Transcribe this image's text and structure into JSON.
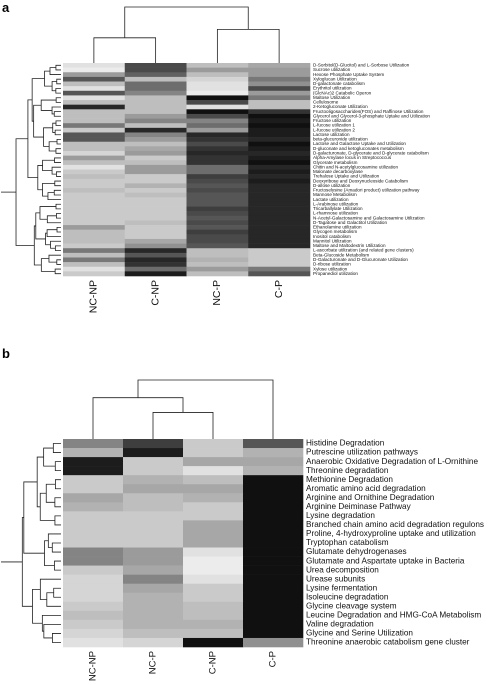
{
  "chart_data": [
    {
      "type": "heatmap",
      "panel_label": "a",
      "columns": [
        "NC-NP",
        "C-NP",
        "NC-P",
        "C-P"
      ],
      "rows": [
        "D-Sorbitol(D-Glucitol) and L-Sorbose Utilization",
        "Sucrose utilization",
        "Hexose Phosphate Uptake System",
        "Xyloglucan Utilization",
        "D-galactonate catabolism",
        "Erythritol utilization",
        "(GlcNAc)2 Catabolic Operon",
        "Maltose Utilization",
        "Cellulosome",
        "2-Ketogluconate Utilization",
        "Fructooligosaccharides(FOS) and Raffinose Utilization",
        "Glycerol and Glycerol-3-phosphate Uptake and Utilization",
        "Fructose utilization",
        "L-fucose utilization 1",
        "L-fucose utilization 2",
        "Lactose utilization",
        "beta-glucuronide utilization",
        "Lactose and Galactose Uptake and Utilization",
        "D-gluconate and ketogluconates metabolism",
        "D-galacturonate, D-glycerate and D-glycerate catabolism",
        "Alpha-Amylase locus in Streptococcus",
        "Glycerate metabolism",
        "Chitin and N-acetylglucosamine utilization",
        "Malonate decarboxylase",
        "Trehalose Uptake and Utilization",
        "Deoxyribose and Deoxynucleoside Catabolism",
        "D-allose utilization",
        "Fructoselysine (Amadori product) utilization pathway",
        "Mannose Metabolism",
        "Lactate utilization",
        "L-Arabinose utilization",
        "Tricarballylate Utilization",
        "L-rhamnose utilization",
        "N-Acetyl-Galactosamine and Galactosamine Utilization",
        "D-Tagatose and Galactitol Utilization",
        "Ethanolamine utilization",
        "Glycogen metabolism",
        "Inositol catabolism",
        "Mannitol Utilization",
        "Maltose and Maltodextrin Utilization",
        "L-ascorbate utilization (and related gene clusters)",
        "Beta-Glucoside Metabolism",
        "D-Galacturonate and D-Glucuronate Utilization",
        "D-ribose utilization",
        "Xylose utilization",
        "Propanediol utilization"
      ],
      "values": [
        [
          10,
          75,
          25,
          35
        ],
        [
          5,
          75,
          40,
          40
        ],
        [
          40,
          65,
          25,
          40
        ],
        [
          70,
          25,
          15,
          55
        ],
        [
          25,
          60,
          10,
          45
        ],
        [
          10,
          60,
          10,
          75
        ],
        [
          70,
          50,
          5,
          40
        ],
        [
          10,
          25,
          100,
          55
        ],
        [
          25,
          25,
          75,
          25
        ],
        [
          90,
          25,
          10,
          25
        ],
        [
          25,
          25,
          100,
          85
        ],
        [
          25,
          40,
          75,
          100
        ],
        [
          25,
          50,
          50,
          95
        ],
        [
          55,
          25,
          60,
          100
        ],
        [
          20,
          90,
          40,
          95
        ],
        [
          70,
          50,
          90,
          95
        ],
        [
          70,
          40,
          85,
          90
        ],
        [
          25,
          25,
          75,
          100
        ],
        [
          25,
          35,
          85,
          95
        ],
        [
          15,
          40,
          90,
          90
        ],
        [
          40,
          20,
          85,
          95
        ],
        [
          25,
          25,
          85,
          100
        ],
        [
          10,
          40,
          60,
          90
        ],
        [
          20,
          40,
          60,
          95
        ],
        [
          25,
          20,
          80,
          90
        ],
        [
          20,
          20,
          75,
          95
        ],
        [
          20,
          30,
          70,
          90
        ],
        [
          25,
          20,
          75,
          90
        ],
        [
          20,
          25,
          70,
          90
        ],
        [
          20,
          20,
          70,
          90
        ],
        [
          20,
          20,
          70,
          90
        ],
        [
          20,
          20,
          80,
          90
        ],
        [
          20,
          20,
          75,
          90
        ],
        [
          20,
          20,
          70,
          90
        ],
        [
          20,
          25,
          75,
          90
        ],
        [
          40,
          20,
          70,
          90
        ],
        [
          25,
          20,
          80,
          90
        ],
        [
          25,
          20,
          75,
          90
        ],
        [
          25,
          35,
          75,
          90
        ],
        [
          20,
          45,
          70,
          90
        ],
        [
          55,
          90,
          25,
          20
        ],
        [
          25,
          70,
          25,
          20
        ],
        [
          55,
          90,
          30,
          20
        ],
        [
          25,
          85,
          25,
          20
        ],
        [
          10,
          60,
          40,
          55
        ],
        [
          20,
          95,
          25,
          70
        ]
      ]
    },
    {
      "type": "heatmap",
      "panel_label": "b",
      "columns": [
        "NC-NP",
        "NC-P",
        "C-NP",
        "C-P"
      ],
      "rows": [
        "Histidine Degradation",
        "Putrescine utilization pathways",
        "Anaerobic Oxidative Degradation of L-Ornithine",
        "Threonine degradation",
        "Methionine Degradation",
        "Aromatic amino acid degradation",
        "Arginine and Ornithine Degradation",
        "Arginine Deiminase Pathway",
        "Lysine degradation",
        "Branched chain amino acid degradation regulons",
        "Proline, 4-hydroxyproline uptake and utilization",
        "Tryptophan catabolism",
        "Glutamate dehydrogenases",
        "Glutamate and Aspartate uptake in Bacteria",
        "Urea decomposition",
        "Urease subunits",
        "Lysine fermentation",
        "Isoleucine degradation",
        "Glycine cleavage system",
        "Leucine Degradation and HMG-CoA Metabolism",
        "Valine degradation",
        "Glycine and Serine Utilization",
        "Threonine anaerobic catabolism gene cluster"
      ],
      "values": [
        [
          50,
          80,
          20,
          70
        ],
        [
          30,
          95,
          20,
          30
        ],
        [
          95,
          20,
          35,
          35
        ],
        [
          95,
          20,
          10,
          30
        ],
        [
          20,
          30,
          25,
          100
        ],
        [
          20,
          35,
          35,
          100
        ],
        [
          35,
          25,
          30,
          100
        ],
        [
          30,
          25,
          20,
          100
        ],
        [
          20,
          20,
          20,
          100
        ],
        [
          20,
          20,
          35,
          100
        ],
        [
          20,
          20,
          35,
          100
        ],
        [
          20,
          20,
          35,
          100
        ],
        [
          50,
          40,
          10,
          100
        ],
        [
          50,
          40,
          5,
          100
        ],
        [
          20,
          35,
          5,
          100
        ],
        [
          15,
          50,
          10,
          100
        ],
        [
          15,
          35,
          20,
          100
        ],
        [
          15,
          30,
          20,
          100
        ],
        [
          20,
          30,
          25,
          100
        ],
        [
          25,
          30,
          25,
          100
        ],
        [
          20,
          30,
          30,
          100
        ],
        [
          15,
          25,
          25,
          100
        ],
        [
          10,
          15,
          100,
          45
        ]
      ]
    }
  ]
}
